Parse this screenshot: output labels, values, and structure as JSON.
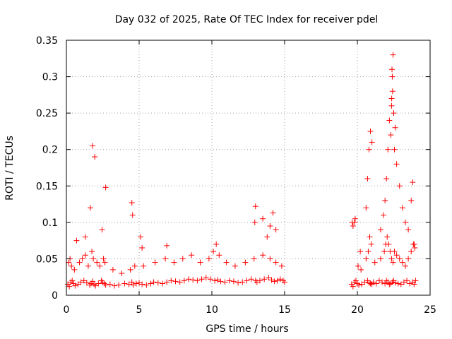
{
  "chart_data": {
    "type": "scatter",
    "title": "Day 032 of 2025, Rate Of TEC Index for receiver pdel",
    "xlabel": "GPS time / hours",
    "ylabel": "ROTI / TECUs",
    "xlim": [
      0,
      25
    ],
    "ylim": [
      0,
      0.35
    ],
    "xticks": [
      0,
      5,
      10,
      15,
      20,
      25
    ],
    "xtick_labels": [
      "0",
      "5",
      "10",
      "15",
      "20",
      "25"
    ],
    "yticks": [
      0,
      0.05,
      0.1,
      0.15,
      0.2,
      0.25,
      0.3,
      0.35
    ],
    "ytick_labels": [
      "0",
      "0.05",
      "0.1",
      "0.15",
      "0.2",
      "0.25",
      "0.3",
      "0.35"
    ],
    "grid": true,
    "marker": "+",
    "marker_color": "#ff0000",
    "series": [
      {
        "name": "ROTI",
        "x": [
          0.1,
          0.2,
          0.3,
          0.4,
          0.5,
          0.6,
          0.8,
          1.0,
          1.2,
          1.4,
          1.6,
          1.7,
          1.8,
          1.9,
          2.0,
          2.2,
          2.4,
          2.5,
          2.6,
          2.7,
          3.0,
          3.3,
          3.6,
          4.0,
          4.3,
          4.5,
          4.6,
          4.8,
          5.0,
          5.2,
          5.5,
          5.8,
          6.0,
          6.3,
          6.6,
          6.9,
          7.2,
          7.5,
          7.8,
          8.1,
          8.4,
          8.7,
          9.0,
          9.3,
          9.6,
          9.9,
          10.2,
          10.4,
          10.6,
          10.9,
          11.2,
          11.5,
          11.8,
          12.1,
          12.4,
          12.7,
          13.0,
          13.1,
          13.3,
          13.6,
          13.9,
          14.1,
          14.3,
          14.5,
          14.7,
          14.9,
          15.0,
          0.15,
          0.35,
          0.55,
          0.9,
          1.1,
          1.3,
          1.5,
          1.75,
          1.85,
          2.1,
          2.3,
          2.55,
          2.65,
          3.2,
          3.8,
          4.4,
          4.7,
          5.3,
          6.1,
          6.8,
          7.4,
          8.0,
          8.6,
          9.2,
          9.8,
          10.1,
          10.5,
          11.0,
          11.6,
          12.3,
          12.9,
          13.5,
          14.0,
          14.4,
          14.8,
          0.25,
          0.7,
          1.3,
          1.65,
          1.8,
          1.95,
          2.45,
          2.7,
          4.5,
          4.55,
          5.1,
          5.2,
          6.9,
          10.3,
          12.95,
          13.0,
          13.5,
          13.8,
          14.0,
          14.2,
          14.4,
          19.6,
          19.7,
          19.8,
          19.9,
          20.0,
          20.1,
          20.3,
          20.5,
          20.7,
          20.8,
          20.9,
          21.0,
          21.1,
          21.3,
          21.5,
          21.7,
          21.9,
          22.0,
          22.1,
          22.2,
          22.3,
          22.4,
          22.5,
          22.6,
          22.8,
          23.0,
          23.2,
          23.4,
          23.6,
          23.8,
          23.9,
          24.0,
          19.65,
          19.85,
          20.05,
          20.25,
          20.6,
          20.75,
          20.85,
          20.95,
          21.2,
          21.6,
          21.85,
          21.95,
          22.05,
          22.15,
          22.25,
          22.35,
          22.45,
          22.55,
          22.7,
          22.9,
          23.1,
          23.3,
          23.5,
          23.7,
          23.85,
          23.95,
          19.7,
          19.8,
          20.2,
          20.6,
          20.7,
          20.8,
          20.9,
          21.0,
          21.6,
          21.8,
          21.9,
          22.0,
          22.1,
          22.2,
          22.3,
          22.35,
          22.4,
          22.45,
          22.5,
          22.55,
          22.6,
          22.7,
          22.9,
          23.1,
          23.3,
          23.5,
          23.7,
          23.8,
          23.9,
          22.38,
          22.42,
          22.36
        ],
        "y": [
          0.015,
          0.012,
          0.018,
          0.02,
          0.016,
          0.013,
          0.015,
          0.018,
          0.02,
          0.017,
          0.014,
          0.016,
          0.019,
          0.015,
          0.013,
          0.016,
          0.02,
          0.018,
          0.016,
          0.014,
          0.015,
          0.013,
          0.014,
          0.016,
          0.015,
          0.018,
          0.014,
          0.016,
          0.017,
          0.015,
          0.014,
          0.016,
          0.018,
          0.017,
          0.016,
          0.018,
          0.02,
          0.019,
          0.018,
          0.02,
          0.022,
          0.021,
          0.02,
          0.022,
          0.024,
          0.022,
          0.02,
          0.021,
          0.019,
          0.018,
          0.02,
          0.019,
          0.017,
          0.018,
          0.02,
          0.022,
          0.02,
          0.018,
          0.02,
          0.022,
          0.024,
          0.021,
          0.019,
          0.02,
          0.022,
          0.02,
          0.018,
          0.045,
          0.04,
          0.035,
          0.045,
          0.05,
          0.055,
          0.04,
          0.06,
          0.05,
          0.045,
          0.04,
          0.05,
          0.045,
          0.035,
          0.03,
          0.035,
          0.04,
          0.04,
          0.045,
          0.05,
          0.045,
          0.05,
          0.055,
          0.045,
          0.05,
          0.06,
          0.055,
          0.045,
          0.04,
          0.045,
          0.05,
          0.055,
          0.05,
          0.045,
          0.04,
          0.05,
          0.075,
          0.08,
          0.12,
          0.205,
          0.19,
          0.09,
          0.148,
          0.127,
          0.11,
          0.08,
          0.065,
          0.068,
          0.07,
          0.1,
          0.122,
          0.105,
          0.08,
          0.095,
          0.113,
          0.09,
          0.015,
          0.012,
          0.018,
          0.02,
          0.016,
          0.014,
          0.015,
          0.018,
          0.02,
          0.017,
          0.016,
          0.015,
          0.018,
          0.016,
          0.02,
          0.018,
          0.016,
          0.02,
          0.018,
          0.015,
          0.016,
          0.018,
          0.02,
          0.017,
          0.016,
          0.015,
          0.018,
          0.02,
          0.016,
          0.018,
          0.015,
          0.02,
          0.1,
          0.105,
          0.04,
          0.035,
          0.05,
          0.06,
          0.08,
          0.07,
          0.045,
          0.05,
          0.06,
          0.07,
          0.08,
          0.07,
          0.06,
          0.05,
          0.045,
          0.06,
          0.055,
          0.05,
          0.045,
          0.04,
          0.05,
          0.06,
          0.07,
          0.065,
          0.095,
          0.1,
          0.06,
          0.12,
          0.16,
          0.2,
          0.225,
          0.21,
          0.09,
          0.11,
          0.13,
          0.16,
          0.2,
          0.24,
          0.22,
          0.26,
          0.3,
          0.33,
          0.25,
          0.2,
          0.23,
          0.18,
          0.15,
          0.12,
          0.1,
          0.09,
          0.13,
          0.155,
          0.07,
          0.31,
          0.28,
          0.27
        ]
      }
    ]
  }
}
